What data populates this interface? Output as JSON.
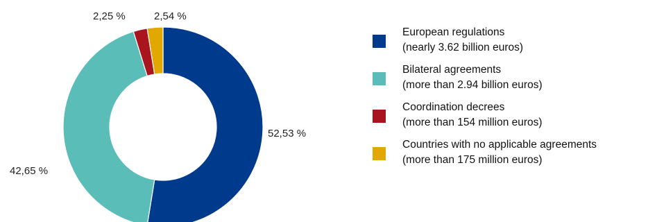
{
  "chart_data": {
    "type": "pie",
    "donut": true,
    "title": "",
    "slices": [
      {
        "label": "52,53 %",
        "value": 52.53,
        "color": "#003a8c",
        "legend_line1": "European regulations",
        "legend_line2": "(nearly 3.62 billion euros)"
      },
      {
        "label": "42,65 %",
        "value": 42.65,
        "color": "#5bbdb8",
        "legend_line1": "Bilateral agreements",
        "legend_line2": "(more than 2.94 billion euros)"
      },
      {
        "label": "2,25 %",
        "value": 2.25,
        "color": "#a8151f",
        "legend_line1": "Coordination decrees",
        "legend_line2": "(more than 154 million euros)"
      },
      {
        "label": "2,54 %",
        "value": 2.54,
        "color": "#e0a800",
        "legend_line1": "Countries with no applicable agreements",
        "legend_line2": "(more than 175 million euros)"
      }
    ],
    "legend_position": "right"
  }
}
